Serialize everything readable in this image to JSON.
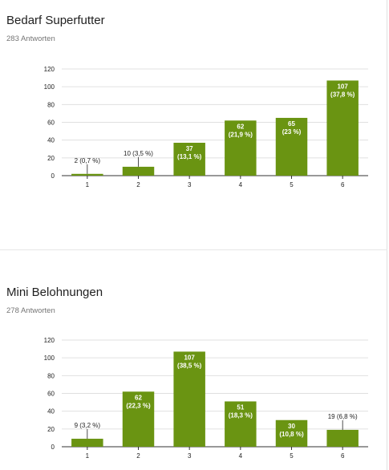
{
  "charts": [
    {
      "title": "Bedarf Superfutter",
      "responses": "283 Antworten"
    },
    {
      "title": "Mini Belohnungen",
      "responses": "278 Antworten"
    }
  ],
  "colors": {
    "bar": "#6a9412",
    "grid": "#e0e0e0",
    "axis": "#333333",
    "label": "#222222",
    "label_on_bar": "#ffffff"
  },
  "chart_data": [
    {
      "type": "bar",
      "title": "Bedarf Superfutter",
      "categories": [
        "1",
        "2",
        "3",
        "4",
        "5",
        "6"
      ],
      "values": [
        2,
        10,
        37,
        62,
        65,
        107
      ],
      "value_labels": [
        "2 (0,7 %)",
        "10 (3,5 %)",
        "37 (13,1 %)",
        "62 (21,9 %)",
        "65 (23 %)",
        "107 (37,8 %)"
      ],
      "yticks": [
        "0",
        "20",
        "40",
        "60",
        "80",
        "100",
        "120"
      ],
      "ylim": [
        0,
        120
      ],
      "grid": true
    },
    {
      "type": "bar",
      "title": "Mini Belohnungen",
      "categories": [
        "1",
        "2",
        "3",
        "4",
        "5",
        "6"
      ],
      "values": [
        9,
        62,
        107,
        51,
        30,
        19
      ],
      "value_labels": [
        "9 (3,2 %)",
        "62 (22,3 %)",
        "107 (38,5 %)",
        "51 (18,3 %)",
        "30 (10,8 %)",
        "19 (6,8 %)"
      ],
      "yticks": [
        "0",
        "20",
        "40",
        "60",
        "80",
        "100",
        "120"
      ],
      "ylim": [
        0,
        120
      ],
      "grid": true
    }
  ]
}
